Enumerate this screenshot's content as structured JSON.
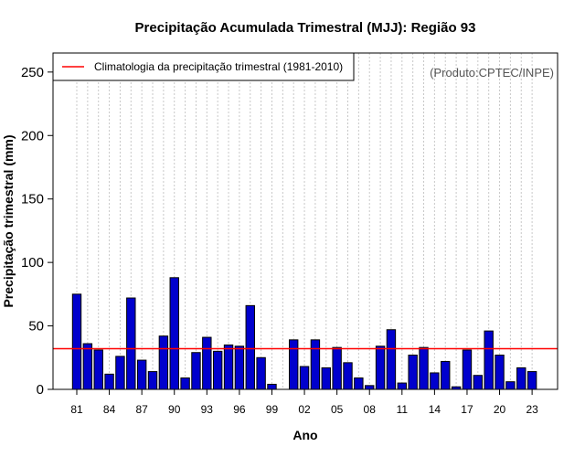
{
  "chart_data": {
    "type": "bar",
    "title": "Precipitação Acumulada Trimestral (MJJ): Região 93",
    "xlabel": "Ano",
    "ylabel": "Precipitação trimestral (mm)",
    "ylim": [
      0,
      265
    ],
    "yticks": [
      0,
      50,
      100,
      150,
      200,
      250
    ],
    "grid": "vertical dotted",
    "categories": [
      "81",
      "82",
      "83",
      "84",
      "85",
      "86",
      "87",
      "88",
      "89",
      "90",
      "91",
      "92",
      "93",
      "94",
      "95",
      "96",
      "97",
      "98",
      "99",
      "00",
      "01",
      "02",
      "03",
      "04",
      "05",
      "06",
      "07",
      "08",
      "09",
      "10",
      "11",
      "12",
      "13",
      "14",
      "15",
      "16",
      "17",
      "18",
      "19",
      "20",
      "21",
      "22",
      "23"
    ],
    "tick_labels": [
      "81",
      "84",
      "87",
      "90",
      "93",
      "96",
      "99",
      "02",
      "05",
      "08",
      "11",
      "14",
      "17",
      "20",
      "23"
    ],
    "series": [
      {
        "name": "Precipitação trimestral",
        "color": "#0000cd",
        "values": [
          75,
          36,
          31,
          12,
          26,
          72,
          23,
          14,
          42,
          88,
          9,
          29,
          41,
          30,
          35,
          34,
          66,
          25,
          4,
          0,
          39,
          18,
          39,
          17,
          33,
          21,
          9,
          3,
          34,
          47,
          5,
          27,
          33,
          13,
          22,
          2,
          31,
          11,
          46,
          27,
          6,
          17,
          14
        ]
      }
    ],
    "climatology": {
      "label": "Climatologia da precipitação trimestral (1981-2010)",
      "value": 32,
      "color": "#ff0000"
    },
    "legend_position": "top-left",
    "source_note": "(Produto:CPTEC/INPE)"
  }
}
